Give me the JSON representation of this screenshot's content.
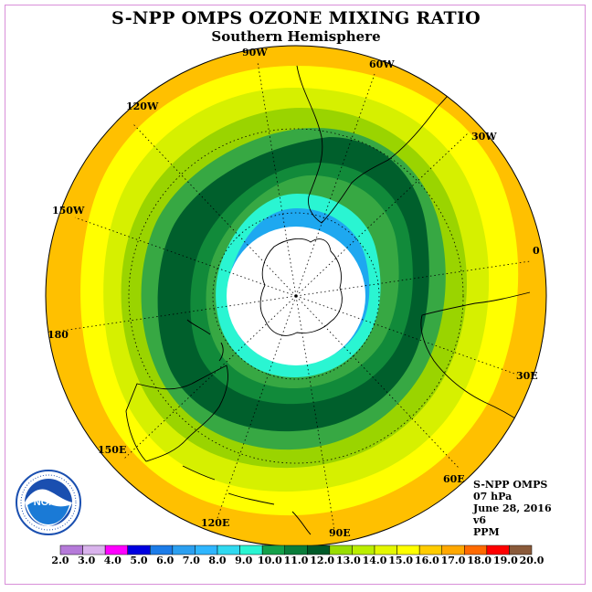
{
  "title": "S-NPP OMPS OZONE MIXING RATIO",
  "subtitle": "Southern Hemisphere",
  "longitude_labels": [
    "90W",
    "60W",
    "30W",
    "0",
    "30E",
    "60E",
    "90E",
    "120E",
    "150E",
    "180",
    "150W",
    "120W"
  ],
  "info": {
    "instrument": "S-NPP OMPS",
    "level": "07 hPa",
    "date": "June 28, 2016",
    "version": "v6",
    "unit": "PPM"
  },
  "logo": {
    "text": "NOAA",
    "icon": "noaa-logo-icon",
    "ring_color": "#1a4fb0"
  },
  "colorbar": {
    "labels": [
      "2.0",
      "3.0",
      "4.0",
      "5.0",
      "6.0",
      "7.0",
      "8.0",
      "9.0",
      "10.0",
      "11.0",
      "12.0",
      "13.0",
      "14.0",
      "15.0",
      "16.0",
      "17.0",
      "18.0",
      "19.0",
      "20.0"
    ],
    "colors": [
      "#b57ad9",
      "#d9b3ec",
      "#ff00ff",
      "#0000e0",
      "#1c7ce8",
      "#2b9ff0",
      "#2fb6ff",
      "#30d9f0",
      "#2af5d2",
      "#14a04a",
      "#0a7d3a",
      "#005a28",
      "#99dd00",
      "#bbee00",
      "#e4f700",
      "#ffff00",
      "#ffcc00",
      "#ffa800",
      "#ff6a00",
      "#ff0000",
      "#8a5a3a"
    ]
  },
  "map_colors": {
    "outer": "#ffc000",
    "band1": "#ffff00",
    "band2": "#d6f000",
    "band3": "#9ad400",
    "band4": "#37a843",
    "band5": "#118a3a",
    "band6": "#005f2c",
    "band7": "#2af5d2",
    "band8": "#1ea8f0",
    "pole": "#ffffff"
  }
}
